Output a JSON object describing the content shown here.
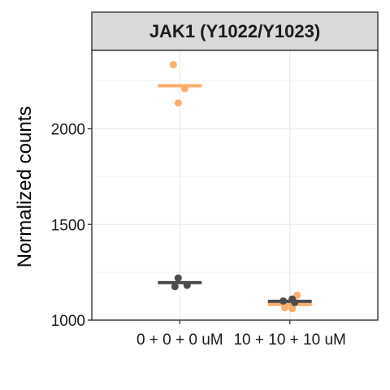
{
  "chart_data": {
    "type": "scatter",
    "facet_label": "JAK1 (Y1022/Y1023)",
    "ylabel": "Normalized counts",
    "xlabel": "",
    "categories": [
      "0 + 0 + 0 uM",
      "10 + 10 + 10 uM"
    ],
    "yticks": [
      1000,
      1500,
      2000
    ],
    "ylim": [
      1000,
      2410
    ],
    "grid": true,
    "legend": "none",
    "series": [
      {
        "color": "#FDAE6B",
        "points": [
          {
            "category": "0 + 0 + 0 uM",
            "y": 2335
          },
          {
            "category": "0 + 0 + 0 uM",
            "y": 2210
          },
          {
            "category": "0 + 0 + 0 uM",
            "y": 2135
          },
          {
            "category": "10 + 10 + 10 uM",
            "y": 1130
          },
          {
            "category": "10 + 10 + 10 uM",
            "y": 1065
          },
          {
            "category": "10 + 10 + 10 uM",
            "y": 1060
          }
        ],
        "means": [
          2225,
          1082
        ]
      },
      {
        "color": "#4D4D4D",
        "points": [
          {
            "category": "0 + 0 + 0 uM",
            "y": 1220
          },
          {
            "category": "0 + 0 + 0 uM",
            "y": 1182
          },
          {
            "category": "0 + 0 + 0 uM",
            "y": 1175
          },
          {
            "category": "10 + 10 + 10 uM",
            "y": 1110
          },
          {
            "category": "10 + 10 + 10 uM",
            "y": 1100
          },
          {
            "category": "10 + 10 + 10 uM",
            "y": 1092
          }
        ],
        "means": [
          1196,
          1098
        ]
      }
    ]
  }
}
